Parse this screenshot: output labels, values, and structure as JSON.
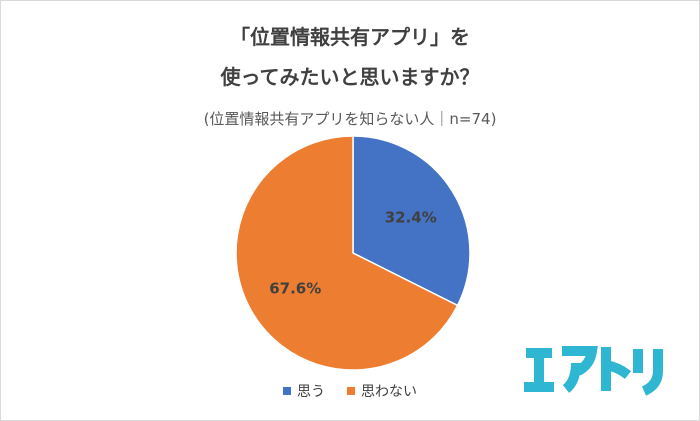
{
  "title_line1": "「位置情報共有アプリ」を",
  "title_line2": "使ってみたいと思いますか？",
  "subtitle": "(位置情報共有アプリを知らない人｜n=74)",
  "logo_text": "エアトリ",
  "colors": {
    "yes": "#4472C4",
    "no": "#ED7D31",
    "logo": "#2FB6D2"
  },
  "chart_data": {
    "type": "pie",
    "title": "「位置情報共有アプリ」を使ってみたいと思いますか？",
    "subtitle": "(位置情報共有アプリを知らない人｜n=74)",
    "categories": [
      "思う",
      "思わない"
    ],
    "values": [
      32.4,
      67.6
    ],
    "data_labels": [
      "32.4%",
      "67.6%"
    ],
    "legend_position": "bottom"
  }
}
